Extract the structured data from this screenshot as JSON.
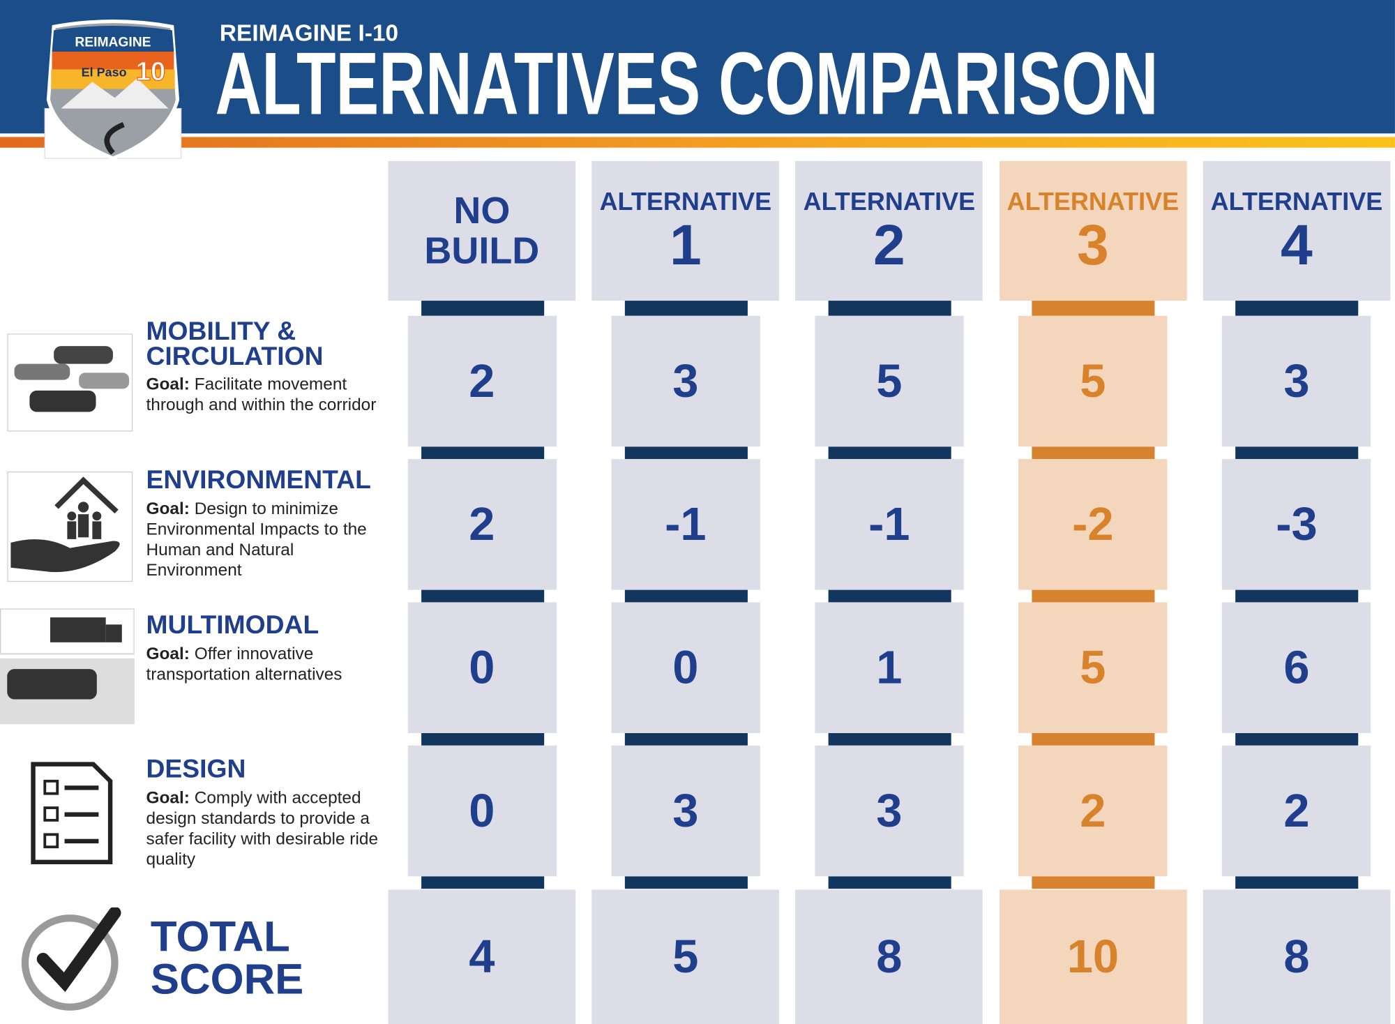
{
  "header": {
    "logo": {
      "top": "REIMAGINE",
      "city": "El Paso",
      "number": "10"
    },
    "kicker": "REIMAGINE I-10",
    "title": "ALTERNATIVES COMPARISON"
  },
  "columns": [
    {
      "line1": "NO",
      "line2": "BUILD"
    },
    {
      "line1": "ALTERNATIVE",
      "line2": "1"
    },
    {
      "line1": "ALTERNATIVE",
      "line2": "2"
    },
    {
      "line1": "ALTERNATIVE",
      "line2": "3"
    },
    {
      "line1": "ALTERNATIVE",
      "line2": "4"
    }
  ],
  "criteria": [
    {
      "title": "MOBILITY & CIRCULATION",
      "goal_label": "Goal:",
      "goal": "Facilitate movement through and within the corridor",
      "scores": [
        2,
        3,
        5,
        5,
        3
      ]
    },
    {
      "title": "ENVIRONMENTAL",
      "goal_label": "Goal:",
      "goal": "Design to minimize Environmental Impacts to the Human and Natural Environment",
      "scores": [
        2,
        -1,
        -1,
        -2,
        -3
      ]
    },
    {
      "title": "MULTIMODAL",
      "goal_label": "Goal:",
      "goal": "Offer innovative transportation alternatives",
      "scores": [
        0,
        0,
        1,
        5,
        6
      ]
    },
    {
      "title": "DESIGN",
      "goal_label": "Goal:",
      "goal": "Comply with accepted design standards to provide a safer facility with desirable ride quality",
      "scores": [
        0,
        3,
        3,
        2,
        2
      ]
    }
  ],
  "total": {
    "title": "TOTAL SCORE",
    "scores": [
      4,
      5,
      8,
      10,
      8
    ]
  }
}
